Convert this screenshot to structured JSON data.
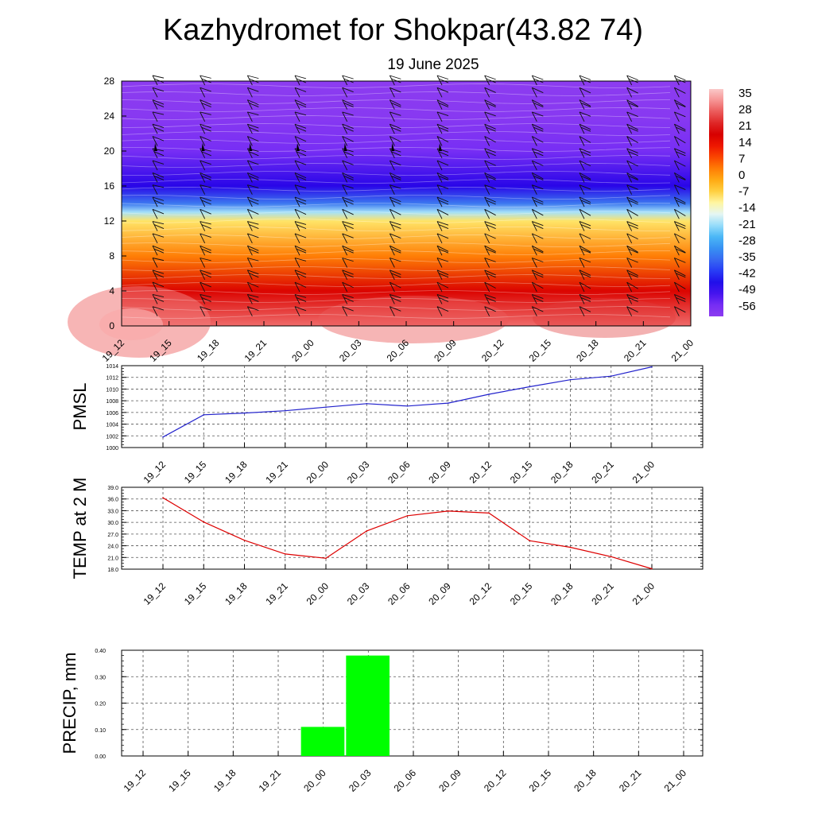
{
  "header": {
    "title": "Kazhydromet for Shokpar(43.82 74)",
    "date": "19 June 2025"
  },
  "time_labels": [
    "19_12",
    "19_15",
    "19_18",
    "19_21",
    "20_00",
    "20_03",
    "20_06",
    "20_09",
    "20_12",
    "20_15",
    "20_18",
    "20_21",
    "21_00"
  ],
  "chart_data": [
    {
      "type": "heatmap",
      "title": "",
      "ylim": [
        0,
        28
      ],
      "yticks": [
        "0",
        "4",
        "8",
        "12",
        "16",
        "20",
        "24",
        "28"
      ],
      "colorbar": {
        "labels": [
          "35",
          "28",
          "21",
          "14",
          "7",
          "0",
          "-7",
          "-14",
          "-21",
          "-28",
          "-35",
          "-42",
          "-49",
          "-56"
        ],
        "range": [
          -63,
          42
        ]
      },
      "levels_km": [
        0,
        4,
        8,
        12,
        13,
        14,
        16,
        20,
        24,
        28
      ],
      "temperature_by_level": [
        33,
        20,
        5,
        -8,
        -20,
        -35,
        -50,
        -58,
        -62,
        -63
      ],
      "wind_barbs": "on",
      "grid": "off"
    },
    {
      "type": "line",
      "ylabel": "PMSL",
      "ylim": [
        1000,
        1014
      ],
      "yticks": [
        "1000",
        "1002",
        "1004",
        "1006",
        "1008",
        "1010",
        "1012",
        "1014"
      ],
      "grid": "on",
      "series": [
        {
          "values": [
            1001.8,
            1005.6,
            1005.9,
            1006.3,
            1006.9,
            1007.5,
            1007.1,
            1007.6,
            1009.1,
            1010.4,
            1011.6,
            1012.2,
            1013.8
          ]
        }
      ]
    },
    {
      "type": "line",
      "ylabel": "TEMP at 2 M",
      "ylim": [
        18,
        39
      ],
      "yticks": [
        "18.0",
        "21.0",
        "24.0",
        "27.0",
        "30.0",
        "33.0",
        "36.0",
        "39.0"
      ],
      "grid": "on",
      "series": [
        {
          "values": [
            36.3,
            30.1,
            25.4,
            21.9,
            20.8,
            27.8,
            31.7,
            32.9,
            32.4,
            25.3,
            23.6,
            21.2,
            18.1
          ]
        }
      ]
    },
    {
      "type": "bar",
      "ylabel": "PRECIP, mm",
      "ylim": [
        0,
        0.4
      ],
      "yticks": [
        "0.00",
        "0.10",
        "0.20",
        "0.30",
        "0.40"
      ],
      "grid": "on",
      "values": [
        0,
        0,
        0,
        0,
        0.11,
        0.38,
        0,
        0,
        0,
        0,
        0,
        0,
        0
      ]
    }
  ],
  "colors": {
    "pmsl_line": "#2222cc",
    "temp_line": "#dd0000",
    "precip_bar": "#00ff00",
    "grid": "#555555"
  }
}
